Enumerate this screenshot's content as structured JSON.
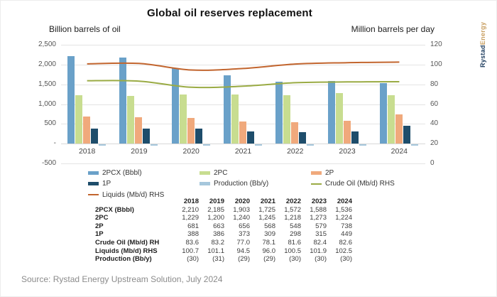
{
  "title": "Global oil reserves replacement",
  "left_axis_title": "Billion barrels of oil",
  "right_axis_title": "Million barrels per day",
  "logo": {
    "part1": "Rystad",
    "part2": "Energy"
  },
  "source": "Source: Rystad Energy Upstream Solution, July 2024",
  "chart_data": {
    "type": "bar",
    "categories": [
      "2018",
      "2019",
      "2020",
      "2021",
      "2022",
      "2023",
      "2024"
    ],
    "series": [
      {
        "name": "2PCX (Bbbl)",
        "kind": "bar",
        "axis": "left",
        "color": "#6aa1c9",
        "values": [
          2210,
          2185,
          1903,
          1725,
          1572,
          1588,
          1536
        ]
      },
      {
        "name": "2PC",
        "kind": "bar",
        "axis": "left",
        "color": "#c8dd90",
        "values": [
          1229,
          1200,
          1240,
          1245,
          1218,
          1273,
          1224
        ]
      },
      {
        "name": "2P",
        "kind": "bar",
        "axis": "left",
        "color": "#f0a97c",
        "values": [
          681,
          663,
          656,
          568,
          548,
          579,
          738
        ]
      },
      {
        "name": "1P",
        "kind": "bar",
        "axis": "left",
        "color": "#1e4d6b",
        "values": [
          388,
          386,
          373,
          309,
          298,
          315,
          449
        ]
      },
      {
        "name": "Production (Bb/y)",
        "kind": "bar",
        "axis": "left",
        "color": "#a6c7dc",
        "values": [
          -30,
          -31,
          -29,
          -29,
          -30,
          -30,
          -30
        ]
      },
      {
        "name": "Crude Oil (Mb/d) RHS",
        "kind": "line",
        "axis": "right",
        "color": "#9aab44",
        "values": [
          83.6,
          83.2,
          77.0,
          78.1,
          81.6,
          82.4,
          82.6
        ]
      },
      {
        "name": "Liquids (Mb/d) RHS",
        "kind": "line",
        "axis": "right",
        "color": "#c2652e",
        "values": [
          100.7,
          101.1,
          94.5,
          96.0,
          100.5,
          101.9,
          102.5
        ]
      }
    ],
    "left_axis": {
      "min": -500,
      "max": 2500,
      "tick_labels": [
        "2,500",
        "2,000",
        "1,500",
        "1,000",
        "500",
        "-",
        "-500"
      ]
    },
    "right_axis": {
      "min": 0,
      "max": 120,
      "tick_labels": [
        "120",
        "100",
        "80",
        "60",
        "40",
        "20",
        "0"
      ]
    },
    "grid": "horizontal",
    "legend_position": "bottom"
  },
  "legend": {
    "items": [
      {
        "label": "2PCX (Bbbl)",
        "swatch": "bar",
        "color": "#6aa1c9"
      },
      {
        "label": "2PC",
        "swatch": "bar",
        "color": "#c8dd90"
      },
      {
        "label": "2P",
        "swatch": "bar",
        "color": "#f0a97c"
      },
      {
        "label": "1P",
        "swatch": "bar",
        "color": "#1e4d6b"
      },
      {
        "label": "Production (Bb/y)",
        "swatch": "bar",
        "color": "#a6c7dc"
      },
      {
        "label": "Crude Oil (Mb/d) RHS",
        "swatch": "line",
        "color": "#9aab44"
      },
      {
        "label": "Liquids (Mb/d) RHS",
        "swatch": "line",
        "color": "#c2652e"
      }
    ]
  },
  "table": {
    "year_headers": [
      "2018",
      "2019",
      "2020",
      "2021",
      "2022",
      "2023",
      "2024"
    ],
    "rows": [
      {
        "label": "2PCX (Bbbl)",
        "values": [
          "2,210",
          "2,185",
          "1,903",
          "1,725",
          "1,572",
          "1,588",
          "1,536"
        ]
      },
      {
        "label": "2PC",
        "values": [
          "1,229",
          "1,200",
          "1,240",
          "1,245",
          "1,218",
          "1,273",
          "1,224"
        ]
      },
      {
        "label": "2P",
        "values": [
          "681",
          "663",
          "656",
          "568",
          "548",
          "579",
          "738"
        ]
      },
      {
        "label": "1P",
        "values": [
          "388",
          "386",
          "373",
          "309",
          "298",
          "315",
          "449"
        ]
      },
      {
        "label": "Crude Oil (Mb/d) RH",
        "values": [
          "83.6",
          "83.2",
          "77.0",
          "78.1",
          "81.6",
          "82.4",
          "82.6"
        ]
      },
      {
        "label": "Liquids (Mb/d) RHS",
        "values": [
          "100.7",
          "101.1",
          "94.5",
          "96.0",
          "100.5",
          "101.9",
          "102.5"
        ]
      },
      {
        "label": "Production (Bb/y)",
        "values": [
          "(30)",
          "(31)",
          "(29)",
          "(29)",
          "(30)",
          "(30)",
          "(30)"
        ]
      }
    ]
  }
}
